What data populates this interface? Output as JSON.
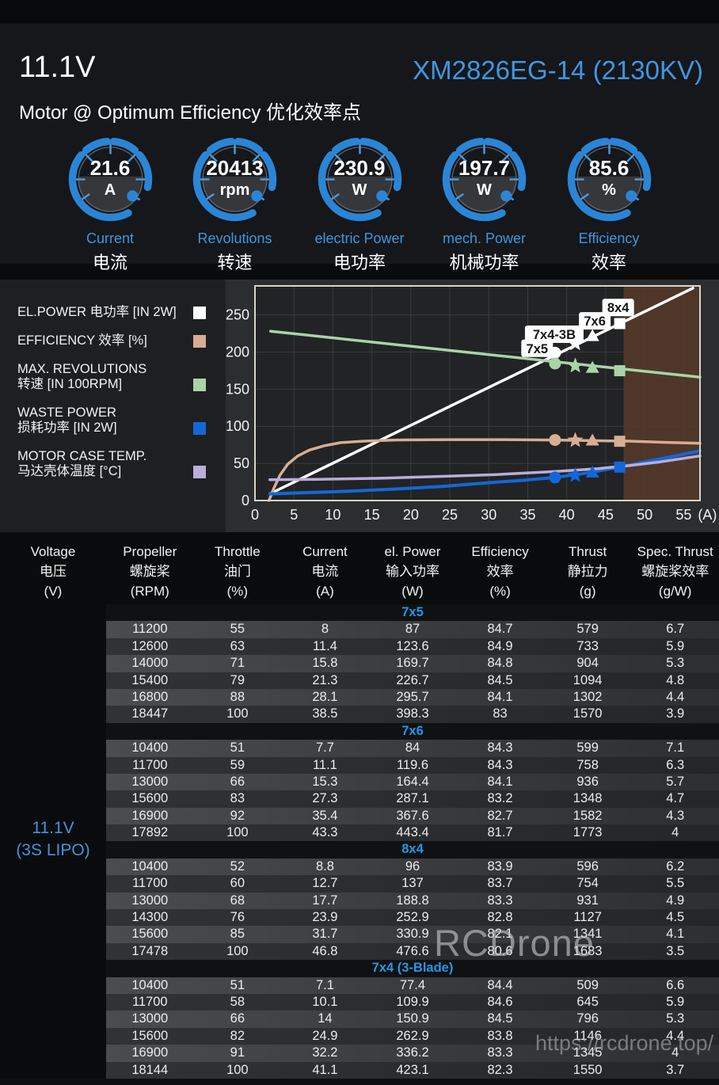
{
  "header": {
    "voltage": "11.1V",
    "model": "XM2826EG-14 (2130KV)",
    "subtitle": "Motor @ Optimum Efficiency  优化效率点"
  },
  "gauges": [
    {
      "value": "21.6",
      "unit": "A",
      "label_en": "Current",
      "label_zh": "电流"
    },
    {
      "value": "20413",
      "unit": "rpm",
      "label_en": "Revolutions",
      "label_zh": "转速"
    },
    {
      "value": "230.9",
      "unit": "W",
      "label_en": "electric Power",
      "label_zh": "电功率"
    },
    {
      "value": "197.7",
      "unit": "W",
      "label_en": "mech. Power",
      "label_zh": "机械功率"
    },
    {
      "value": "85.6",
      "unit": "%",
      "label_en": "Efficiency",
      "label_zh": "效率"
    }
  ],
  "legend": [
    {
      "line1": "EL.POWER 电功率 [IN 2W]",
      "line2": "",
      "color": "#ffffff"
    },
    {
      "line1": "EFFICIENCY 效率 [%]",
      "line2": "",
      "color": "#d7ad94"
    },
    {
      "line1": "MAX. REVOLUTIONS",
      "line2": "转速 [IN 100RPM]",
      "color": "#a9d4a7"
    },
    {
      "line1": "WASTE POWER",
      "line2": "损耗功率 [IN 2W]",
      "color": "#1467d9"
    },
    {
      "line1": "MOTOR CASE TEMP.",
      "line2": "马达壳体温度 [°C]",
      "color": "#b9addc"
    }
  ],
  "chart_data": {
    "type": "line",
    "xlabel": "(A)",
    "x_ticks": [
      0,
      5,
      10,
      15,
      20,
      25,
      30,
      35,
      40,
      45,
      50,
      55
    ],
    "y_ticks": [
      0,
      50,
      100,
      150,
      200,
      250
    ],
    "xlim": [
      0,
      57.1
    ],
    "ylim": [
      0,
      289
    ],
    "grid": true,
    "overload_region": {
      "from": 47.3,
      "to": 57.1,
      "color": "#53392a"
    },
    "series": [
      {
        "name": "EL.POWER 电功率 [IN 2W]",
        "color": "#ffffff",
        "width": 3.5,
        "points": [
          [
            1.9,
            9
          ],
          [
            56.2,
            286
          ]
        ]
      },
      {
        "name": "MAX. REVOLUTIONS 转速 [IN 100RPM]",
        "color": "#a9d4a7",
        "width": 3.5,
        "points": [
          [
            2,
            228
          ],
          [
            57.1,
            166
          ]
        ]
      },
      {
        "name": "EFFICIENCY 效率 [%]",
        "color": "#d7ad94",
        "width": 3.5,
        "points": [
          [
            1.8,
            0
          ],
          [
            2.4,
            16
          ],
          [
            3.2,
            34
          ],
          [
            4.2,
            49
          ],
          [
            5.5,
            60
          ],
          [
            7,
            68
          ],
          [
            9,
            74
          ],
          [
            11,
            78
          ],
          [
            14,
            80
          ],
          [
            18,
            81.5
          ],
          [
            25,
            82
          ],
          [
            32,
            82
          ],
          [
            38.5,
            81.5
          ],
          [
            44,
            80.5
          ],
          [
            48,
            80
          ],
          [
            52,
            78.5
          ],
          [
            57.1,
            77
          ]
        ]
      },
      {
        "name": "WASTE POWER 损耗功率 [IN 2W]",
        "color": "#1467d9",
        "width": 4,
        "points": [
          [
            1.9,
            9
          ],
          [
            6,
            10.5
          ],
          [
            12,
            12.5
          ],
          [
            18,
            15.5
          ],
          [
            24,
            19
          ],
          [
            30,
            24
          ],
          [
            34,
            27
          ],
          [
            38.5,
            31
          ],
          [
            42,
            36
          ],
          [
            46.8,
            45
          ],
          [
            50,
            52
          ],
          [
            53,
            58
          ],
          [
            57.1,
            67
          ]
        ]
      },
      {
        "name": "MOTOR CASE TEMP. 马达壳体温度 [°C]",
        "color": "#b9addc",
        "width": 3.5,
        "points": [
          [
            1.9,
            28
          ],
          [
            8,
            28.5
          ],
          [
            16,
            30
          ],
          [
            24,
            32.5
          ],
          [
            31,
            35
          ],
          [
            38.5,
            39
          ],
          [
            44,
            43
          ],
          [
            48,
            47
          ],
          [
            52,
            52
          ],
          [
            57.1,
            60
          ]
        ]
      }
    ],
    "markers": [
      {
        "prop": "7x5",
        "shape": "circle",
        "series": "el_power",
        "x": 38.5,
        "y": 199,
        "color": "#ffffff"
      },
      {
        "prop": "7x4-3B",
        "shape": "star",
        "series": "el_power",
        "x": 41.1,
        "y": 211.5,
        "color": "#ffffff"
      },
      {
        "prop": "7x6",
        "shape": "triangle",
        "series": "el_power",
        "x": 43.3,
        "y": 221.7,
        "color": "#ffffff"
      },
      {
        "prop": "8x4",
        "shape": "square",
        "series": "el_power",
        "x": 46.8,
        "y": 238.3,
        "color": "#ffffff"
      },
      {
        "prop": "7x5",
        "shape": "circle",
        "series": "revolutions",
        "x": 38.5,
        "y": 184.5,
        "color": "#a9d4a7"
      },
      {
        "prop": "7x4-3B",
        "shape": "star",
        "series": "revolutions",
        "x": 41.1,
        "y": 181.4,
        "color": "#a9d4a7"
      },
      {
        "prop": "7x6",
        "shape": "triangle",
        "series": "revolutions",
        "x": 43.3,
        "y": 178.9,
        "color": "#a9d4a7"
      },
      {
        "prop": "8x4",
        "shape": "square",
        "series": "revolutions",
        "x": 46.8,
        "y": 174.8,
        "color": "#a9d4a7"
      },
      {
        "prop": "7x5",
        "shape": "circle",
        "series": "efficiency",
        "x": 38.5,
        "y": 81.5,
        "color": "#d7ad94"
      },
      {
        "prop": "7x4-3B",
        "shape": "star",
        "series": "efficiency",
        "x": 41.1,
        "y": 81,
        "color": "#d7ad94"
      },
      {
        "prop": "7x6",
        "shape": "triangle",
        "series": "efficiency",
        "x": 43.3,
        "y": 81,
        "color": "#d7ad94"
      },
      {
        "prop": "8x4",
        "shape": "square",
        "series": "efficiency",
        "x": 46.8,
        "y": 79.8,
        "color": "#d7ad94"
      },
      {
        "prop": "7x5",
        "shape": "circle",
        "series": "waste_power",
        "x": 38.5,
        "y": 31,
        "color": "#1467d9"
      },
      {
        "prop": "7x4-3B",
        "shape": "star",
        "series": "waste_power",
        "x": 41.1,
        "y": 34,
        "color": "#1467d9"
      },
      {
        "prop": "7x6",
        "shape": "triangle",
        "series": "waste_power",
        "x": 43.3,
        "y": 38,
        "color": "#1467d9"
      },
      {
        "prop": "8x4",
        "shape": "square",
        "series": "waste_power",
        "x": 46.8,
        "y": 45,
        "color": "#1467d9"
      }
    ],
    "point_labels": [
      {
        "text": "7x5",
        "x": 36.2,
        "y": 205
      },
      {
        "text": "7x4-3B",
        "x": 38.4,
        "y": 224
      },
      {
        "text": "7x6",
        "x": 43.6,
        "y": 242
      },
      {
        "text": "8x4",
        "x": 46.6,
        "y": 260
      }
    ]
  },
  "table": {
    "voltage_label": {
      "line1": "11.1V",
      "line2": "(3S LIPO)"
    },
    "columns": [
      {
        "en": "Voltage",
        "zh": "电压",
        "unit": "(V)"
      },
      {
        "en": "Propeller",
        "zh": "螺旋桨",
        "unit": "(RPM)"
      },
      {
        "en": "Throttle",
        "zh": "油门",
        "unit": "(%)"
      },
      {
        "en": "Current",
        "zh": "电流",
        "unit": "(A)"
      },
      {
        "en": "el. Power",
        "zh": "输入功率",
        "unit": "(W)"
      },
      {
        "en": "Efficiency",
        "zh": "效率",
        "unit": "(%)"
      },
      {
        "en": "Thrust",
        "zh": "静拉力",
        "unit": "(g)"
      },
      {
        "en": "Spec. Thrust",
        "zh": "螺旋桨效率",
        "unit": "(g/W)"
      }
    ],
    "sections": [
      {
        "name": "7x5",
        "rows": [
          [
            11200,
            55,
            8,
            87,
            84.7,
            579,
            6.7
          ],
          [
            12600,
            63,
            11.4,
            123.6,
            84.9,
            733,
            5.9
          ],
          [
            14000,
            71,
            15.8,
            169.7,
            84.8,
            904,
            5.3
          ],
          [
            15400,
            79,
            21.3,
            226.7,
            84.5,
            1094,
            4.8
          ],
          [
            16800,
            88,
            28.1,
            295.7,
            84.1,
            1302,
            4.4
          ],
          [
            18447,
            100,
            38.5,
            398.3,
            83,
            1570,
            3.9
          ]
        ]
      },
      {
        "name": "7x6",
        "rows": [
          [
            10400,
            51,
            7.7,
            84,
            84.3,
            599,
            7.1
          ],
          [
            11700,
            59,
            11.1,
            119.6,
            84.3,
            758,
            6.3
          ],
          [
            13000,
            66,
            15.3,
            164.4,
            84.1,
            936,
            5.7
          ],
          [
            15600,
            83,
            27.3,
            287.1,
            83.2,
            1348,
            4.7
          ],
          [
            16900,
            92,
            35.4,
            367.6,
            82.7,
            1582,
            4.3
          ],
          [
            17892,
            100,
            43.3,
            443.4,
            81.7,
            1773,
            4
          ]
        ]
      },
      {
        "name": "8x4",
        "rows": [
          [
            10400,
            52,
            8.8,
            96,
            83.9,
            596,
            6.2
          ],
          [
            11700,
            60,
            12.7,
            137,
            83.7,
            754,
            5.5
          ],
          [
            13000,
            68,
            17.7,
            188.8,
            83.3,
            931,
            4.9
          ],
          [
            14300,
            76,
            23.9,
            252.9,
            82.8,
            1127,
            4.5
          ],
          [
            15600,
            85,
            31.7,
            330.9,
            82.1,
            1341,
            4.1
          ],
          [
            17478,
            100,
            46.8,
            476.6,
            80.6,
            1683,
            3.5
          ]
        ]
      },
      {
        "name": "7x4 (3-Blade)",
        "rows": [
          [
            10400,
            51,
            7.1,
            77.4,
            84.4,
            509,
            6.6
          ],
          [
            11700,
            58,
            10.1,
            109.9,
            84.6,
            645,
            5.9
          ],
          [
            13000,
            66,
            14,
            150.9,
            84.5,
            796,
            5.3
          ],
          [
            15600,
            82,
            24.9,
            262.9,
            83.8,
            1146,
            4.4
          ],
          [
            16900,
            91,
            32.2,
            336.2,
            83.3,
            1345,
            4
          ],
          [
            18144,
            100,
            41.1,
            423.1,
            82.3,
            1550,
            3.7
          ]
        ]
      }
    ]
  },
  "watermarks": {
    "brand": "RCDrone",
    "url": "https://rcdrone.top/"
  },
  "colors": {
    "accent_blue": "#3e96e0",
    "gauge_blue": "#2b85d6",
    "section_title_blue": "#2596e8",
    "plot_bg": "#212324",
    "grid": "#3a3c3e",
    "frame": "#d8d4c8"
  }
}
